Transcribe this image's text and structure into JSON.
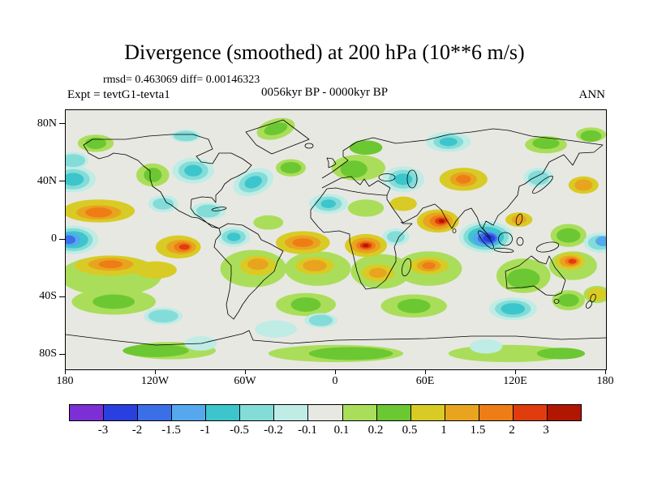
{
  "title": "Divergence (smoothed) at 200 hPa (10**6 m/s)",
  "stats": "rmsd= 0.463069 diff= 0.00146323",
  "experiment": "Expt = tevtG1-tevta1",
  "period": "0056kyr BP - 0000kyr BP",
  "season": "ANN",
  "chart_data": {
    "type": "heatmap",
    "subtype": "filled-contour-map",
    "projection": "equirectangular",
    "field": "Divergence (smoothed) at 200 hPa",
    "units": "10**6 m/s",
    "rmsd": 0.463069,
    "diff": 0.00146323,
    "lon_range": [
      -180,
      180
    ],
    "lat_range": [
      -90,
      90
    ],
    "contour_levels": [
      -3,
      -2,
      -1.5,
      -1,
      -0.5,
      -0.2,
      -0.1,
      0.1,
      0.2,
      0.5,
      1,
      1.5,
      2,
      3
    ],
    "colorbar_labels": [
      "-3",
      "-2",
      "-1.5",
      "-1",
      "-0.5",
      "-0.2",
      "-0.1",
      "0.1",
      "0.2",
      "0.5",
      "1",
      "1.5",
      "2",
      "3"
    ],
    "palette": [
      "#7b2fd4",
      "#2a3fe0",
      "#3a6fe8",
      "#55a8ee",
      "#3cc6cc",
      "#84dcd8",
      "#c0ece6",
      "#e8e8e2",
      "#aade5a",
      "#6cc832",
      "#d9cb25",
      "#e9a41f",
      "#ef7d16",
      "#e13c0e",
      "#b11600"
    ],
    "neutral_color": "#e8e8e2",
    "lat_ticks": [
      {
        "label": "80N",
        "deg": 80
      },
      {
        "label": "40N",
        "deg": 40
      },
      {
        "label": "0",
        "deg": 0
      },
      {
        "label": "40S",
        "deg": -40
      },
      {
        "label": "80S",
        "deg": -80
      }
    ],
    "lon_ticks": [
      {
        "label": "180",
        "deg": -180
      },
      {
        "label": "120W",
        "deg": -120
      },
      {
        "label": "60W",
        "deg": -60
      },
      {
        "label": "0",
        "deg": 0
      },
      {
        "label": "60E",
        "deg": 60
      },
      {
        "label": "120E",
        "deg": 120
      },
      {
        "label": "180",
        "deg": 180
      }
    ],
    "features": [
      [
        -150,
        -25,
        34,
        14,
        0,
        8
      ],
      [
        -55,
        -20,
        22,
        13,
        0,
        8
      ],
      [
        -12,
        -20,
        22,
        12,
        0,
        8
      ],
      [
        30,
        -22,
        20,
        12,
        0,
        8
      ],
      [
        62,
        -20,
        22,
        12,
        0,
        8
      ],
      [
        125,
        -25,
        18,
        12,
        0,
        8
      ],
      [
        158,
        -18,
        16,
        10,
        0,
        8
      ],
      [
        -148,
        -43,
        28,
        9,
        0,
        8
      ],
      [
        -20,
        -45,
        20,
        8,
        0,
        8
      ],
      [
        52,
        -46,
        22,
        8,
        0,
        8
      ],
      [
        0,
        -79,
        45,
        6,
        0,
        8
      ],
      [
        115,
        -79,
        40,
        6,
        0,
        8
      ],
      [
        -110,
        -77,
        30,
        6,
        0,
        8
      ],
      [
        15,
        50,
        18,
        9,
        0,
        8
      ],
      [
        -122,
        45,
        11,
        8,
        0,
        8
      ],
      [
        140,
        66,
        14,
        6,
        0,
        8
      ],
      [
        -160,
        67,
        12,
        6,
        0,
        8
      ],
      [
        170,
        73,
        10,
        5,
        0,
        8
      ],
      [
        -40,
        77,
        13,
        7,
        -15,
        8
      ],
      [
        20,
        22,
        12,
        6,
        0,
        8
      ],
      [
        -45,
        12,
        10,
        5,
        0,
        8
      ],
      [
        -30,
        50,
        10,
        6,
        0,
        8
      ],
      [
        155,
        3,
        12,
        8,
        0,
        8
      ],
      [
        174,
        -38,
        9,
        6,
        0,
        8
      ],
      [
        155,
        -42,
        11,
        7,
        0,
        8
      ],
      [
        -95,
        48,
        14,
        9,
        0,
        6
      ],
      [
        -55,
        40,
        14,
        9,
        -20,
        6
      ],
      [
        45,
        42,
        14,
        9,
        0,
        6
      ],
      [
        -5,
        25,
        13,
        7,
        0,
        6
      ],
      [
        100,
        2,
        18,
        11,
        0,
        6
      ],
      [
        -175,
        42,
        15,
        9,
        0,
        6
      ],
      [
        -175,
        0,
        17,
        10,
        0,
        6
      ],
      [
        118,
        -48,
        16,
        8,
        0,
        6
      ],
      [
        -40,
        -62,
        14,
        6,
        0,
        6
      ],
      [
        75,
        68,
        15,
        7,
        0,
        6
      ],
      [
        -68,
        2,
        11,
        7,
        0,
        6
      ],
      [
        40,
        2,
        9,
        6,
        0,
        6
      ],
      [
        -115,
        25,
        10,
        6,
        0,
        6
      ],
      [
        -85,
        20,
        12,
        6,
        0,
        6
      ],
      [
        176,
        -2,
        11,
        7,
        0,
        6
      ],
      [
        -90,
        -72,
        11,
        5,
        0,
        6
      ],
      [
        100,
        -74,
        11,
        5,
        0,
        6
      ],
      [
        135,
        43,
        10,
        7,
        0,
        6
      ],
      [
        -175,
        55,
        10,
        6,
        0,
        6
      ],
      [
        -115,
        -53,
        13,
        6,
        0,
        6
      ],
      [
        -10,
        -56,
        11,
        5,
        0,
        6
      ],
      [
        -100,
        72,
        10,
        4.5,
        0,
        6
      ],
      [
        12,
        49,
        9,
        6,
        0,
        9
      ],
      [
        20,
        64,
        11,
        5,
        0,
        9
      ],
      [
        -40,
        77,
        8,
        4,
        -15,
        9
      ],
      [
        -122,
        45,
        6,
        5,
        0,
        9
      ],
      [
        -148,
        -43,
        14,
        5,
        0,
        9
      ],
      [
        52,
        -46,
        11,
        5,
        0,
        9
      ],
      [
        -20,
        -45,
        10,
        5,
        0,
        9
      ],
      [
        155,
        3,
        8,
        5,
        0,
        9
      ],
      [
        -120,
        -77,
        22,
        4.5,
        0,
        9
      ],
      [
        10,
        -79,
        28,
        4.5,
        0,
        9
      ],
      [
        150,
        -79,
        16,
        4,
        0,
        9
      ],
      [
        125,
        -27,
        11,
        7,
        0,
        9
      ],
      [
        170,
        72,
        7,
        4,
        0,
        9
      ],
      [
        155,
        -42,
        7,
        4.5,
        0,
        9
      ],
      [
        -30,
        50,
        7,
        4,
        0,
        9
      ],
      [
        140,
        67,
        9,
        4,
        0,
        9
      ],
      [
        -160,
        67,
        7,
        4,
        0,
        9
      ],
      [
        -95,
        48,
        10,
        6.5,
        0,
        5
      ],
      [
        -55,
        40,
        10,
        6.5,
        -20,
        5
      ],
      [
        45,
        42,
        10,
        6.5,
        0,
        5
      ],
      [
        -5,
        25,
        9,
        5,
        0,
        5
      ],
      [
        100,
        2,
        15,
        9,
        0,
        5
      ],
      [
        -175,
        42,
        11,
        7,
        0,
        5
      ],
      [
        -175,
        0,
        13,
        8,
        0,
        5
      ],
      [
        118,
        -48,
        12,
        6,
        0,
        5
      ],
      [
        75,
        68,
        10,
        5,
        0,
        5
      ],
      [
        -68,
        2,
        8,
        5,
        0,
        5
      ],
      [
        40,
        2,
        6,
        4,
        0,
        5
      ],
      [
        -85,
        20,
        8,
        4.5,
        0,
        5
      ],
      [
        176,
        -2,
        8,
        5,
        0,
        5
      ],
      [
        -115,
        -53,
        10,
        4.5,
        0,
        5
      ],
      [
        -10,
        -56,
        8,
        4,
        0,
        5
      ],
      [
        -100,
        72,
        8,
        3.5,
        0,
        5
      ],
      [
        135,
        43,
        7,
        5,
        0,
        5
      ],
      [
        -175,
        55,
        8,
        4.5,
        0,
        5
      ],
      [
        -115,
        25,
        7,
        4,
        0,
        5
      ],
      [
        -158,
        20,
        24,
        8,
        0,
        10
      ],
      [
        -105,
        -5,
        15,
        8,
        0,
        10
      ],
      [
        -22,
        -2,
        18,
        8,
        0,
        10
      ],
      [
        20,
        -4,
        14,
        8,
        0,
        10
      ],
      [
        68,
        13,
        14,
        8,
        0,
        10
      ],
      [
        -150,
        -18,
        24,
        7,
        0,
        10
      ],
      [
        -120,
        -21,
        14,
        6,
        0,
        10
      ],
      [
        -52,
        -18,
        12,
        7,
        0,
        10
      ],
      [
        -14,
        -18,
        13,
        6,
        0,
        10
      ],
      [
        28,
        -23,
        11,
        6,
        0,
        10
      ],
      [
        62,
        -18,
        13,
        6,
        0,
        10
      ],
      [
        156,
        -15,
        10,
        6,
        0,
        10
      ],
      [
        85,
        42,
        16,
        8,
        0,
        10
      ],
      [
        165,
        38,
        10,
        6,
        0,
        10
      ],
      [
        122,
        14,
        9,
        5,
        0,
        10
      ],
      [
        45,
        25,
        9,
        5,
        0,
        10
      ],
      [
        174,
        -38,
        7,
        4.5,
        0,
        10
      ],
      [
        -95,
        48,
        6,
        4,
        0,
        4
      ],
      [
        -55,
        40,
        6,
        4,
        -20,
        4
      ],
      [
        45,
        42,
        6,
        4,
        0,
        4
      ],
      [
        -175,
        42,
        7,
        4.5,
        0,
        4
      ],
      [
        118,
        -48,
        8,
        4,
        0,
        4
      ],
      [
        -5,
        25,
        5,
        3,
        0,
        4
      ],
      [
        -68,
        2,
        4.5,
        3,
        0,
        4
      ],
      [
        100,
        2,
        12,
        7,
        0,
        4
      ],
      [
        -175,
        0,
        10,
        6,
        0,
        4
      ],
      [
        75,
        68,
        6,
        3,
        0,
        4
      ],
      [
        -158,
        19,
        15,
        5,
        0,
        11
      ],
      [
        -22,
        -2,
        12,
        5,
        0,
        11
      ],
      [
        20,
        -4,
        10,
        5.5,
        0,
        11
      ],
      [
        68,
        13,
        10,
        6,
        0,
        11
      ],
      [
        -103,
        -5,
        10,
        5,
        0,
        11
      ],
      [
        -150,
        -17,
        15,
        4.5,
        0,
        11
      ],
      [
        -14,
        -18,
        8,
        4,
        0,
        11
      ],
      [
        62,
        -18,
        8,
        4,
        0,
        11
      ],
      [
        156,
        -15,
        7,
        4,
        0,
        11
      ],
      [
        85,
        42,
        9,
        5,
        0,
        11
      ],
      [
        165,
        38,
        6,
        4,
        0,
        11
      ],
      [
        -52,
        -17,
        7,
        4,
        0,
        11
      ],
      [
        28,
        -23,
        6,
        3.5,
        0,
        11
      ],
      [
        122,
        14,
        5,
        3,
        0,
        11
      ],
      [
        100,
        1,
        9,
        5.5,
        0,
        3
      ],
      [
        -177,
        0,
        7,
        4.5,
        0,
        3
      ],
      [
        178,
        -1,
        5,
        3.5,
        0,
        3
      ],
      [
        -158,
        19,
        9,
        3.5,
        0,
        12
      ],
      [
        -102,
        -5,
        6,
        3.5,
        0,
        12
      ],
      [
        -22,
        -2,
        7,
        3,
        0,
        12
      ],
      [
        20,
        -4,
        6.5,
        3.5,
        0,
        12
      ],
      [
        69,
        13,
        6.5,
        4,
        0,
        12
      ],
      [
        85,
        42,
        5,
        3,
        0,
        12
      ],
      [
        157,
        -15,
        4.5,
        2.7,
        0,
        12
      ],
      [
        -150,
        -17,
        8,
        2.8,
        0,
        12
      ],
      [
        62,
        -18,
        4.5,
        2.5,
        0,
        12
      ],
      [
        101,
        1,
        6.5,
        4,
        0,
        2
      ],
      [
        -178,
        0,
        4.5,
        3,
        0,
        2
      ],
      [
        20,
        -4,
        4,
        2.2,
        0,
        13
      ],
      [
        70,
        13,
        4,
        2.5,
        0,
        13
      ],
      [
        -101,
        -5,
        3.5,
        2,
        0,
        13
      ],
      [
        157.5,
        -15,
        2.7,
        1.7,
        0,
        13
      ],
      [
        102,
        1,
        4,
        2.6,
        0,
        1
      ],
      [
        20,
        -4,
        2,
        1.2,
        0,
        14
      ],
      [
        70.5,
        13,
        2,
        1.3,
        0,
        14
      ]
    ]
  }
}
